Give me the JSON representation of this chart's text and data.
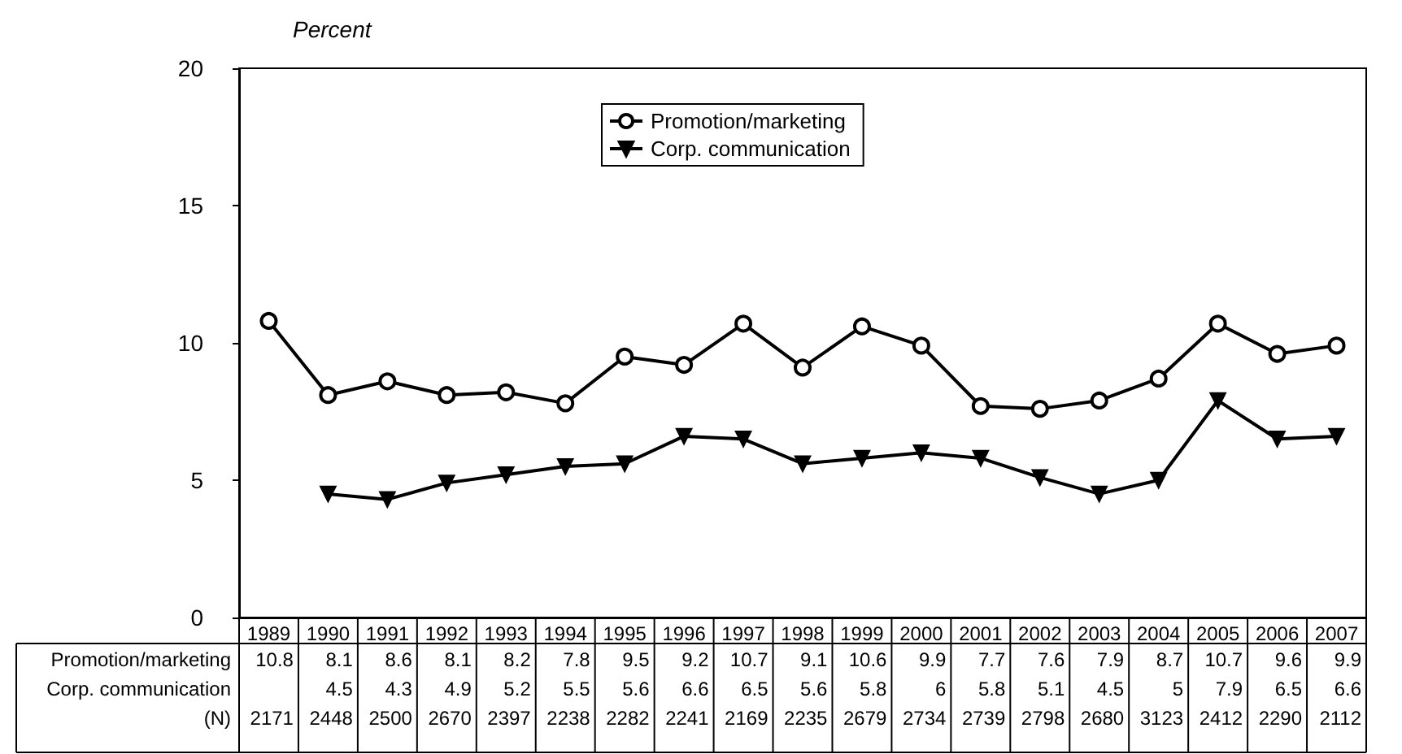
{
  "chart_data": {
    "type": "line",
    "ylabel": "Percent",
    "categories": [
      "1989",
      "1990",
      "1991",
      "1992",
      "1993",
      "1994",
      "1995",
      "1996",
      "1997",
      "1998",
      "1999",
      "2000",
      "2001",
      "2002",
      "2003",
      "2004",
      "2005",
      "2006",
      "2007"
    ],
    "series": [
      {
        "name": "Promotion/marketing",
        "color": "#000000",
        "marker": "circle",
        "values": [
          10.8,
          8.1,
          8.6,
          8.1,
          8.2,
          7.8,
          9.5,
          9.2,
          10.7,
          9.1,
          10.6,
          9.9,
          7.7,
          7.6,
          7.9,
          8.7,
          10.7,
          9.6,
          9.9
        ]
      },
      {
        "name": "Corp. communication",
        "color": "#000000",
        "marker": "triangle",
        "values": [
          null,
          4.5,
          4.3,
          4.9,
          5.2,
          5.5,
          5.6,
          6.6,
          6.5,
          5.6,
          5.8,
          6,
          5.8,
          5.1,
          4.5,
          5,
          7.9,
          6.5,
          6.6
        ]
      }
    ],
    "annotations": [
      "(N)",
      "2171",
      "2448",
      "2500",
      "2670",
      "2397",
      "2238",
      "2282",
      "2241",
      "2169",
      "2235",
      "2679",
      "2734",
      "2739",
      "2798",
      "2680",
      "3123",
      "2412",
      "2290",
      "2112"
    ],
    "ylim": [
      0,
      20
    ],
    "yticks": [
      0,
      5,
      10,
      15,
      20
    ],
    "grid": false,
    "legend": "top",
    "data_labels": true,
    "line_style": "solid"
  }
}
